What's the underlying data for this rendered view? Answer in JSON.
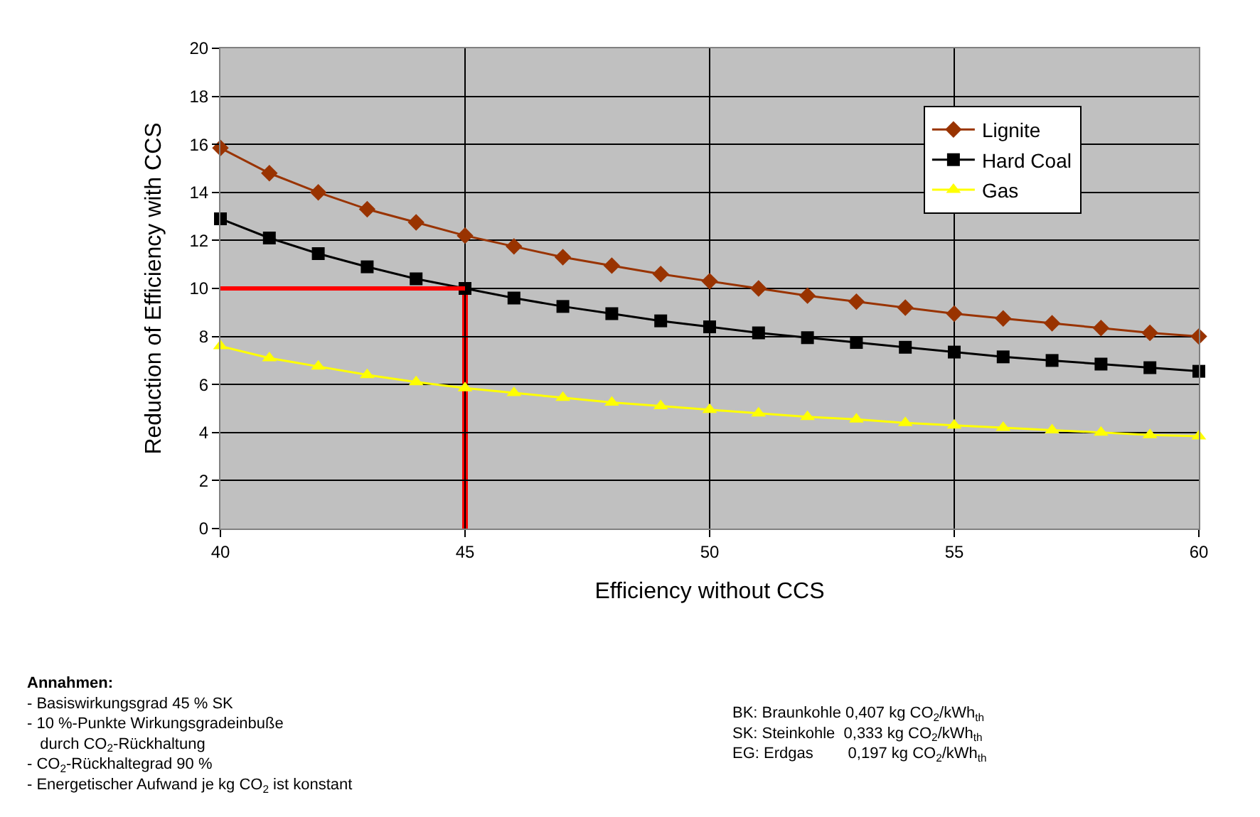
{
  "chart_data": {
    "type": "line",
    "xlabel": "Efficiency without CCS",
    "ylabel": "Reduction of Efficiency with CCS",
    "x": [
      40,
      41,
      42,
      43,
      44,
      45,
      46,
      47,
      48,
      49,
      50,
      51,
      52,
      53,
      54,
      55,
      56,
      57,
      58,
      59,
      60
    ],
    "series": [
      {
        "name": "Lignite",
        "color": "#993300",
        "marker": "diamond",
        "values": [
          15.85,
          14.8,
          14.0,
          13.3,
          12.75,
          12.2,
          11.75,
          11.3,
          10.95,
          10.6,
          10.3,
          10.0,
          9.7,
          9.45,
          9.2,
          8.95,
          8.75,
          8.55,
          8.35,
          8.15,
          8.0
        ]
      },
      {
        "name": "Hard Coal",
        "color": "#000000",
        "marker": "square",
        "values": [
          12.9,
          12.1,
          11.45,
          10.9,
          10.4,
          10.0,
          9.6,
          9.25,
          8.95,
          8.65,
          8.4,
          8.15,
          7.95,
          7.75,
          7.55,
          7.35,
          7.15,
          7.0,
          6.85,
          6.7,
          6.55
        ]
      },
      {
        "name": "Gas",
        "color": "#ffff00",
        "marker": "triangle",
        "values": [
          7.6,
          7.1,
          6.75,
          6.4,
          6.1,
          5.85,
          5.65,
          5.45,
          5.25,
          5.1,
          4.95,
          4.8,
          4.65,
          4.55,
          4.4,
          4.3,
          4.2,
          4.1,
          4.0,
          3.9,
          3.85
        ]
      }
    ],
    "xlim": [
      40,
      60
    ],
    "xticks": [
      40,
      45,
      50,
      55,
      60
    ],
    "ylim": [
      0,
      20
    ],
    "yticks": [
      0,
      2,
      4,
      6,
      8,
      10,
      12,
      14,
      16,
      18,
      20
    ],
    "grid": true,
    "legend": "top right",
    "ref_lines": [
      {
        "axis": "y",
        "value": 10,
        "color": "#ff0000"
      },
      {
        "axis": "x",
        "value": 45,
        "color": "#ff0000"
      }
    ],
    "annotations": [
      "Annahmen:\n- Basiswirkungsgrad 45 % SK\n- 10 %-Punkte Wirkungsgradeinbuße\n   durch CO$_{2}$-Rückhaltung\n- CO$_{2}$-Rückhaltegrad 90 %\n- Energetischer Aufwand je kg CO$_{2}$ ist konstant",
      "BK: Braunkohle 0,407 kg CO$_{2}$/kWh$_{th}$\nSK: Steinkohle  0,333 kg CO$_{2}$/kWh$_{th}$\nEG: Erdgas        0,197 kg CO$_{2}$/kWh$_{th}$"
    ]
  }
}
